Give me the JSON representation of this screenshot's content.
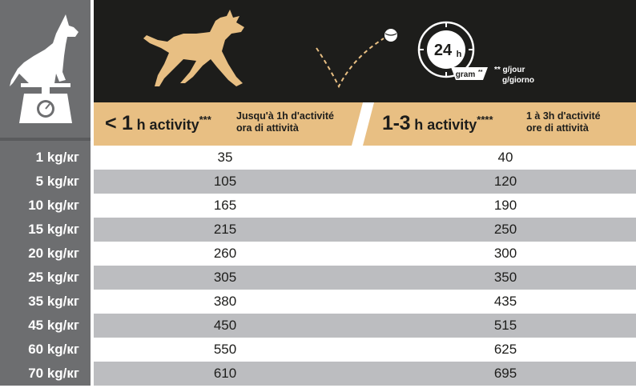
{
  "header": {
    "time_label": "24",
    "time_unit": "h",
    "gram_label": "gram",
    "gram_stars": "**",
    "per_day_fr": "** g/jour",
    "per_day_it": "g/giorno"
  },
  "columns": [
    {
      "prefix": "< 1",
      "unit": " h activity",
      "stars": "***",
      "desc_fr": "Jusqu'à 1h d'activité",
      "desc_it": "ora di attività"
    },
    {
      "prefix": "1-3",
      "unit": " h activity",
      "stars": "****",
      "desc_fr": "1 à 3h d'activité",
      "desc_it": "ore di attività"
    }
  ],
  "rows": [
    {
      "weight": "1 kg/кг",
      "low": "35",
      "high": "40"
    },
    {
      "weight": "5 kg/кг",
      "low": "105",
      "high": "120"
    },
    {
      "weight": "10 kg/кг",
      "low": "165",
      "high": "190"
    },
    {
      "weight": "15 kg/кг",
      "low": "215",
      "high": "250"
    },
    {
      "weight": "20 kg/кг",
      "low": "260",
      "high": "300"
    },
    {
      "weight": "25 kg/кг",
      "low": "305",
      "high": "350"
    },
    {
      "weight": "35 kg/кг",
      "low": "380",
      "high": "435"
    },
    {
      "weight": "45 kg/кг",
      "low": "450",
      "high": "515"
    },
    {
      "weight": "60 kg/кг",
      "low": "550",
      "high": "625"
    },
    {
      "weight": "70 kg/кг",
      "low": "610",
      "high": "695"
    }
  ],
  "colors": {
    "accent": "#e8bf83",
    "dark": "#1d1d1b",
    "grey": "#6d6e70",
    "row_alt": "#bcbdc0"
  },
  "icons": [
    "dog-on-scale-icon",
    "running-dog-icon",
    "ball-icon",
    "clock-24h-icon",
    "bowl-icon"
  ]
}
